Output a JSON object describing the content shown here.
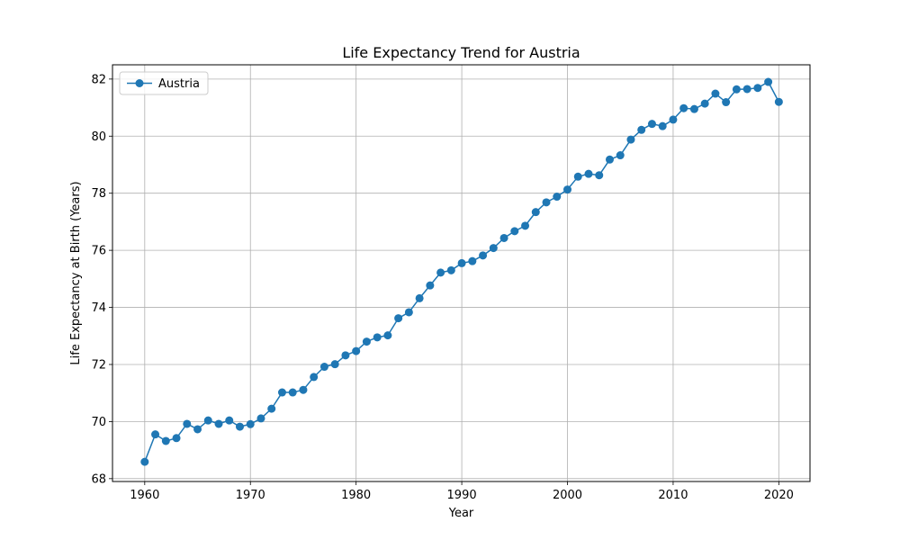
{
  "chart_data": {
    "type": "line",
    "title": "Life Expectancy Trend for Austria",
    "xlabel": "Year",
    "ylabel": "Life Expectancy at Birth (Years)",
    "xlim": [
      1956.95,
      2022.95
    ],
    "ylim": [
      67.9,
      82.5
    ],
    "xticks": [
      1960,
      1970,
      1980,
      1990,
      2000,
      2010,
      2020
    ],
    "yticks": [
      68,
      70,
      72,
      74,
      76,
      78,
      80,
      82
    ],
    "grid": true,
    "legend_position": "upper-left",
    "x": [
      1960,
      1961,
      1962,
      1963,
      1964,
      1965,
      1966,
      1967,
      1968,
      1969,
      1970,
      1971,
      1972,
      1973,
      1974,
      1975,
      1976,
      1977,
      1978,
      1979,
      1980,
      1981,
      1982,
      1983,
      1984,
      1985,
      1986,
      1987,
      1988,
      1989,
      1990,
      1991,
      1992,
      1993,
      1994,
      1995,
      1996,
      1997,
      1998,
      1999,
      2000,
      2001,
      2002,
      2003,
      2004,
      2005,
      2006,
      2007,
      2008,
      2009,
      2010,
      2011,
      2012,
      2013,
      2014,
      2015,
      2016,
      2017,
      2018,
      2019,
      2020
    ],
    "series": [
      {
        "name": "Austria",
        "color": "#1f77b4",
        "marker": "circle",
        "values": [
          68.59,
          69.55,
          69.32,
          69.42,
          69.92,
          69.73,
          70.04,
          69.92,
          70.04,
          69.82,
          69.91,
          70.11,
          70.45,
          71.02,
          71.02,
          71.11,
          71.56,
          71.92,
          72.01,
          72.32,
          72.47,
          72.8,
          72.95,
          73.02,
          73.62,
          73.83,
          74.32,
          74.77,
          75.22,
          75.3,
          75.55,
          75.62,
          75.82,
          76.08,
          76.43,
          76.67,
          76.86,
          77.34,
          77.68,
          77.88,
          78.13,
          78.58,
          78.68,
          78.63,
          79.18,
          79.33,
          79.88,
          80.22,
          80.43,
          80.35,
          80.58,
          80.98,
          80.95,
          81.14,
          81.49,
          81.19,
          81.64,
          81.65,
          81.69,
          81.9,
          81.2
        ]
      }
    ]
  }
}
